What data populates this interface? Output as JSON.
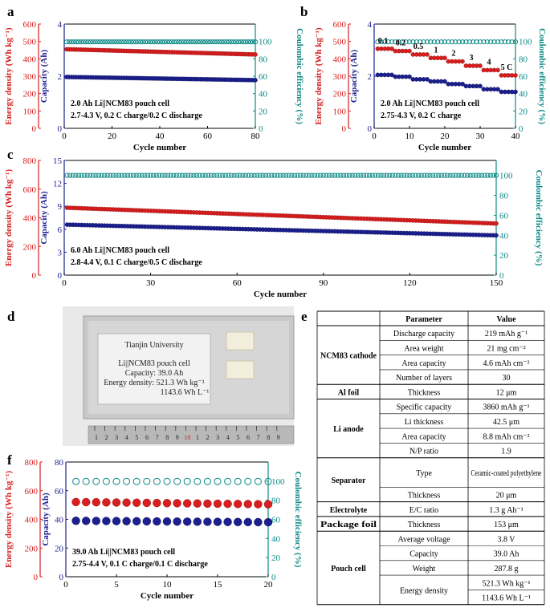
{
  "colors": {
    "red": "#d81e1e",
    "navy": "#1b1f8f",
    "teal": "#0d8a86"
  },
  "panels": {
    "a": {
      "label": "a",
      "notes": [
        "2.0 Ah Li||NCM83 pouch cell",
        "2.7-4.3 V, 0.2 C charge/0.2 C discharge"
      ]
    },
    "b": {
      "label": "b",
      "notes": [
        "2.0 Ah Li||NCM83 pouch cell",
        "2.75-4.3 V, 0.2 C charge"
      ]
    },
    "c": {
      "label": "c",
      "notes": [
        "6.0 Ah Li||NCM83 pouch cell",
        "2.8-4.4 V, 0.1 C charge/0.5 C discharge"
      ]
    },
    "d": {
      "label": "d"
    },
    "e": {
      "label": "e"
    },
    "f": {
      "label": "f",
      "notes": [
        "39.0 Ah Li||NCM83 pouch cell",
        "2.75-4.4 V, 0.1 C charge/0.1 C discharge"
      ]
    }
  },
  "axis_titles": {
    "energy": "Energy density (Wh kg⁻¹)",
    "capacity": "Capacity (Ah)",
    "ce": "Coulombic efficiency (%)",
    "cycle": "Cycle number"
  },
  "chart_data": [
    {
      "id": "a",
      "type": "line",
      "xlabel": "Cycle number",
      "xlim": [
        0,
        80
      ],
      "xticks": [
        0,
        20,
        40,
        60,
        80
      ],
      "ylabel_energy": "Energy density (Wh kg⁻¹)",
      "energy_lim": [
        0,
        600
      ],
      "energy_ticks": [
        0,
        100,
        200,
        300,
        400,
        500,
        600
      ],
      "ylabel_capacity": "Capacity (Ah)",
      "capacity_lim": [
        0,
        4
      ],
      "capacity_ticks": [
        0,
        2,
        4
      ],
      "ylabel_ce": "Coulombic efficiency (%)",
      "ce_lim": [
        0,
        120
      ],
      "ce_ticks": [
        0,
        20,
        40,
        60,
        80,
        100
      ],
      "series": [
        {
          "name": "Energy density",
          "axis": "energy",
          "color": "#d81e1e",
          "x_start": 1,
          "x_end": 80,
          "y_start": 455,
          "y_end": 425
        },
        {
          "name": "Capacity",
          "axis": "capacity",
          "color": "#1b1f8f",
          "x_start": 1,
          "x_end": 80,
          "y_start": 1.97,
          "y_end": 1.85
        },
        {
          "name": "Coulombic efficiency",
          "axis": "ce",
          "color": "#0d8a86",
          "x_start": 1,
          "x_end": 80,
          "y_start": 99.5,
          "y_end": 99.5
        }
      ]
    },
    {
      "id": "b",
      "type": "line",
      "xlabel": "Cycle number",
      "xlim": [
        0,
        40
      ],
      "xticks": [
        0,
        10,
        20,
        30,
        40
      ],
      "ylabel_energy": "Energy density (Wh kg⁻¹)",
      "energy_lim": [
        0,
        600
      ],
      "energy_ticks": [
        0,
        100,
        200,
        300,
        400,
        500,
        600
      ],
      "ylabel_capacity": "Capacity (Ah)",
      "capacity_lim": [
        0,
        4
      ],
      "capacity_ticks": [
        0,
        2,
        4
      ],
      "ylabel_ce": "Coulombic efficiency (%)",
      "ce_lim": [
        0,
        120
      ],
      "ce_ticks": [
        0,
        20,
        40,
        60,
        80,
        100
      ],
      "rates": [
        "0.1",
        "0.2",
        "0.5",
        "1",
        "2",
        "3",
        "4",
        "5 C"
      ],
      "energy_steps": [
        458,
        445,
        425,
        405,
        385,
        360,
        335,
        305
      ],
      "capacity_steps": [
        2.05,
        1.98,
        1.88,
        1.8,
        1.7,
        1.62,
        1.5,
        1.4
      ],
      "series": [
        {
          "name": "Energy density",
          "axis": "energy",
          "color": "#d81e1e"
        },
        {
          "name": "Capacity",
          "axis": "capacity",
          "color": "#1b1f8f"
        },
        {
          "name": "Coulombic efficiency",
          "axis": "ce",
          "color": "#0d8a86",
          "y": 99.5
        }
      ]
    },
    {
      "id": "c",
      "type": "line",
      "xlabel": "Cycle number",
      "xlim": [
        0,
        150
      ],
      "xticks": [
        0,
        30,
        60,
        90,
        120,
        150
      ],
      "ylabel_energy": "Energy density (Wh kg⁻¹)",
      "energy_lim": [
        0,
        800
      ],
      "energy_ticks": [
        0,
        200,
        400,
        600,
        800
      ],
      "ylabel_capacity": "Capacity (Ah)",
      "capacity_lim": [
        0,
        15
      ],
      "capacity_ticks": [
        0,
        3,
        6,
        9,
        12,
        15
      ],
      "ylabel_ce": "Coulombic efficiency (%)",
      "ce_lim": [
        0,
        115
      ],
      "ce_ticks": [
        0,
        20,
        40,
        60,
        80,
        100
      ],
      "series": [
        {
          "name": "Energy density",
          "axis": "energy",
          "color": "#d81e1e",
          "x_start": 1,
          "x_end": 150,
          "y_start": 470,
          "y_end": 360
        },
        {
          "name": "Capacity",
          "axis": "capacity",
          "color": "#1b1f8f",
          "x_start": 1,
          "x_end": 150,
          "y_start": 6.6,
          "y_end": 5.2
        },
        {
          "name": "Coulombic efficiency",
          "axis": "ce",
          "color": "#0d8a86",
          "x_start": 1,
          "x_end": 150,
          "y_start": 100,
          "y_end": 100
        }
      ]
    },
    {
      "id": "f",
      "type": "scatter",
      "xlabel": "Cycle number",
      "xlim": [
        0,
        20
      ],
      "xticks": [
        0,
        5,
        10,
        15,
        20
      ],
      "ylabel_energy": "Energy density (Wh kg⁻¹)",
      "energy_lim": [
        0,
        800
      ],
      "energy_ticks": [
        0,
        200,
        400,
        600,
        800
      ],
      "ylabel_capacity": "Capacity (Ah)",
      "capacity_lim": [
        0,
        80
      ],
      "capacity_ticks": [
        0,
        20,
        40,
        60,
        80
      ],
      "ylabel_ce": "Coulombic efficiency (%)",
      "ce_lim": [
        0,
        120
      ],
      "ce_ticks": [
        0,
        20,
        40,
        60,
        80,
        100
      ],
      "series": [
        {
          "name": "Energy density",
          "axis": "energy",
          "color": "#d81e1e",
          "x_start": 1,
          "x_end": 20,
          "y_start": 521,
          "y_end": 505
        },
        {
          "name": "Capacity",
          "axis": "capacity",
          "color": "#1b1f8f",
          "x_start": 1,
          "x_end": 20,
          "y_start": 39.0,
          "y_end": 38.0
        },
        {
          "name": "Coulombic efficiency",
          "axis": "ce",
          "color": "#0d8a86",
          "x_start": 1,
          "x_end": 20,
          "y_start": 99.7,
          "y_end": 99.7
        }
      ]
    }
  ],
  "pouch": {
    "title": "Tianjin University",
    "lines": [
      "Li||NCM83 pouch cell",
      "Capacity: 39.0 Ah",
      "Energy density: 521.3 Wh kg⁻¹",
      "1143.6 Wh L⁻¹"
    ],
    "ruler_numbers": [
      "1",
      "2",
      "3",
      "4",
      "5",
      "6",
      "7",
      "8",
      "9",
      "10",
      "1",
      "2",
      "3",
      "4",
      "5",
      "6",
      "7",
      "8",
      "9"
    ]
  },
  "table": {
    "headers": [
      "Parameter",
      "Value"
    ],
    "groups": [
      {
        "name": "NCM83 cathode",
        "rows": [
          [
            "Discharge capacity",
            "219 mAh g⁻¹"
          ],
          [
            "Area weight",
            "21 mg cm⁻²"
          ],
          [
            "Area capacity",
            "4.6 mAh cm⁻²"
          ],
          [
            "Number of layers",
            "30"
          ]
        ]
      },
      {
        "name": "Al foil",
        "rows": [
          [
            "Thickness",
            "12 μm"
          ]
        ]
      },
      {
        "name": "Li anode",
        "rows": [
          [
            "Specific capacity",
            "3860 mAh g⁻¹"
          ],
          [
            "Li thickness",
            "42.5 μm"
          ],
          [
            "Area capacity",
            "8.8 mAh cm⁻²"
          ],
          [
            "N/P ratio",
            "1.9"
          ]
        ]
      },
      {
        "name": "Separator",
        "rows": [
          [
            "Type",
            "Ceramic-coated polyethylene"
          ],
          [
            "Thickness",
            "20 μm"
          ]
        ]
      },
      {
        "name": "Electrolyte",
        "rows": [
          [
            "E/C ratio",
            "1.3 g Ah⁻¹"
          ]
        ]
      },
      {
        "name": "Package foil",
        "rows": [
          [
            "Thickness",
            "153 μm"
          ]
        ]
      },
      {
        "name": "Pouch cell",
        "rows": [
          [
            "Average voltage",
            "3.8 V"
          ],
          [
            "Capacity",
            "39.0 Ah"
          ],
          [
            "Weight",
            "287.8 g"
          ],
          [
            "Energy density",
            "521.3 Wh kg⁻¹",
            "1143.6 Wh L⁻¹"
          ]
        ]
      }
    ]
  }
}
